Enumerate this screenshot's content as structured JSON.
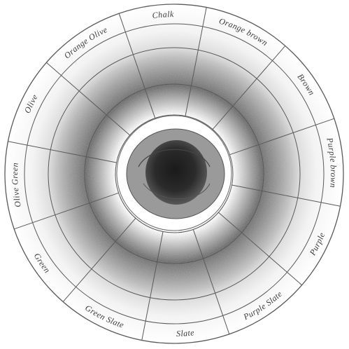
{
  "segments": [
    {
      "key": "chalk",
      "label": "Chalk"
    },
    {
      "key": "orange-brown",
      "label": "Orange brown"
    },
    {
      "key": "brown",
      "label": "Brown"
    },
    {
      "key": "purple-brown",
      "label": "Purple brown"
    },
    {
      "key": "purple",
      "label": "Purple"
    },
    {
      "key": "purple-slate",
      "label": "Purple Slate"
    },
    {
      "key": "slate",
      "label": "Slate"
    },
    {
      "key": "green-slate",
      "label": "Green Slate"
    },
    {
      "key": "green",
      "label": "Green"
    },
    {
      "key": "olive-green",
      "label": "Olive Green"
    },
    {
      "key": "olive",
      "label": "Olive"
    },
    {
      "key": "orange-olive",
      "label": "Orange Olive"
    }
  ],
  "colors": {
    "line": "#5a5a5a",
    "label": "#3b3b3b",
    "ring_light": "#efefef",
    "ring_mid": "#c9c9c9",
    "ring_dark": "#8f8f8f",
    "center": "#2a2a2a"
  }
}
